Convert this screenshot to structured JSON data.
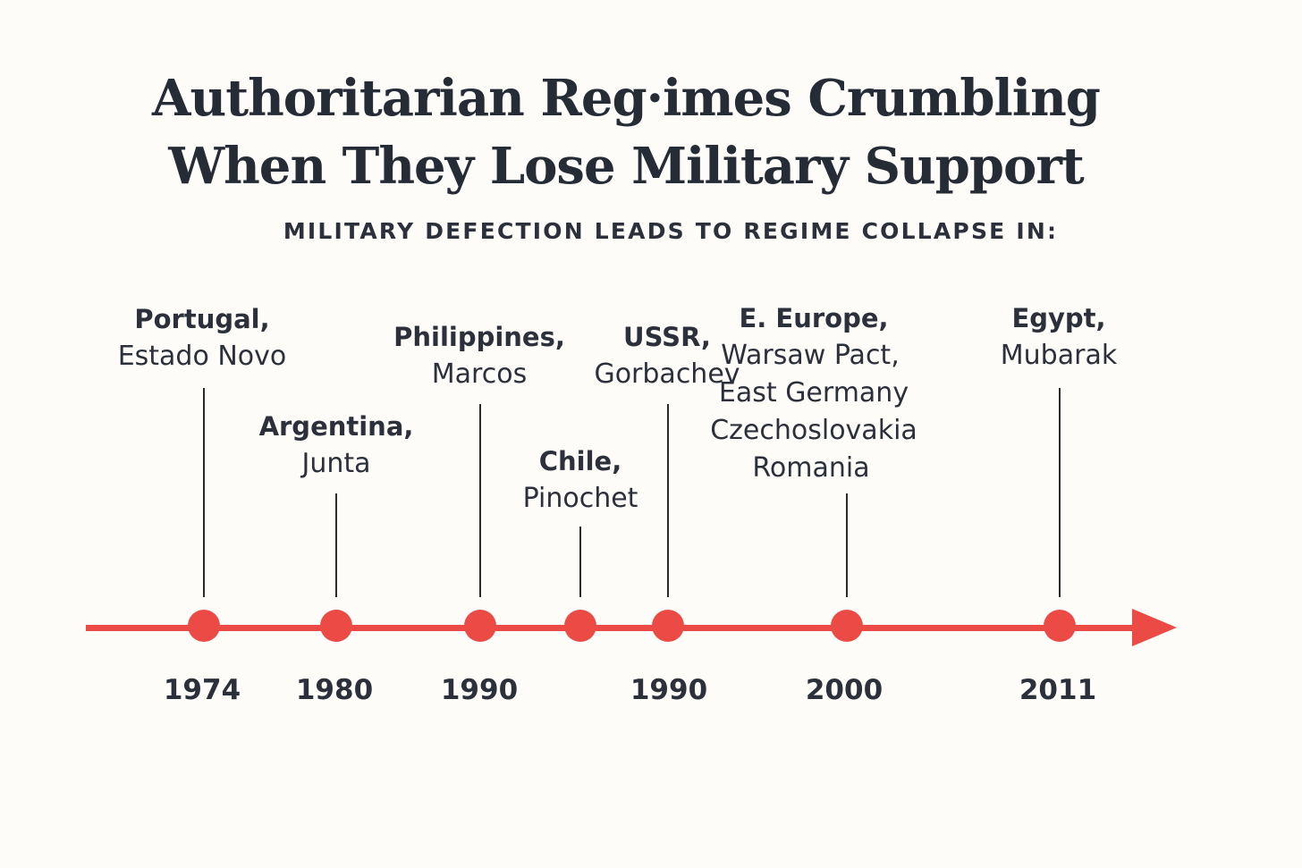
{
  "title": {
    "line1": "Authoritarian Reg·imes Crumbling",
    "line2": "When They Lose Military Support"
  },
  "subtitle": "MILITARY DEFECTION LEADS TO REGIME COLLAPSE IN:",
  "events": [
    {
      "country": "Portugal,",
      "details": [
        "Estado Novo"
      ],
      "year": "1974"
    },
    {
      "country": "Argentina,",
      "details": [
        "Junta"
      ],
      "year": "1980"
    },
    {
      "country": "Philippines,",
      "details": [
        "Marcos"
      ],
      "year": "1990"
    },
    {
      "country": "Chile,",
      "details": [
        "Pinochet"
      ],
      "year": ""
    },
    {
      "country": "USSR,",
      "details": [
        "Gorbachev"
      ],
      "year": "1990"
    },
    {
      "country": "E. Europe,",
      "details": [
        "Warsaw Pact,",
        "East Germany",
        "Czechoslovakia",
        "Romania"
      ],
      "year": "2000"
    },
    {
      "country": "Egypt,",
      "details": [
        "Mubarak"
      ],
      "year": "2011"
    }
  ],
  "colors": {
    "axis": "#ec4b45",
    "text": "#2b303a",
    "background": "#fdfcf8"
  }
}
